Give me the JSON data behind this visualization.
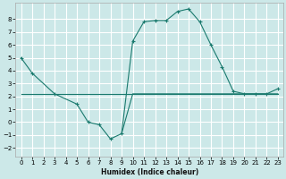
{
  "xlabel": "Humidex (Indice chaleur)",
  "color": "#1a7a6e",
  "bg_color": "#cce8e8",
  "grid_color": "#ffffff",
  "ylim": [
    -2.7,
    9.3
  ],
  "xlim": [
    -0.5,
    23.5
  ],
  "yticks": [
    -2,
    -1,
    0,
    1,
    2,
    3,
    4,
    5,
    6,
    7,
    8
  ],
  "xticks": [
    0,
    1,
    2,
    3,
    4,
    5,
    6,
    7,
    8,
    9,
    10,
    11,
    12,
    13,
    14,
    15,
    16,
    17,
    18,
    19,
    20,
    21,
    22,
    23
  ],
  "line_descend_x": [
    0,
    1,
    3,
    5,
    6,
    7,
    8,
    9
  ],
  "line_descend_y": [
    5.0,
    3.8,
    2.2,
    1.4,
    0.0,
    -0.2,
    -1.3,
    -0.9
  ],
  "line_flat_x": [
    0,
    1,
    2,
    3,
    4,
    5,
    6,
    7,
    8,
    9,
    10,
    11,
    12,
    13,
    14,
    15,
    16,
    17,
    18,
    19,
    20,
    21,
    22,
    23
  ],
  "line_flat_y": [
    2.2,
    2.2,
    2.2,
    2.2,
    2.2,
    2.2,
    2.2,
    2.2,
    2.2,
    2.2,
    2.2,
    2.2,
    2.2,
    2.2,
    2.2,
    2.2,
    2.2,
    2.2,
    2.2,
    2.2,
    2.2,
    2.2,
    2.2,
    2.2
  ],
  "line_upper_x": [
    9,
    10,
    11,
    12,
    13,
    14,
    15,
    16,
    17,
    18,
    19,
    20,
    21,
    22,
    23
  ],
  "line_upper_y": [
    -0.9,
    6.3,
    7.8,
    7.9,
    7.9,
    8.6,
    8.8,
    7.8,
    6.0,
    4.3,
    2.4,
    2.2,
    2.2,
    2.2,
    2.6
  ],
  "line_lower_x": [
    9,
    10,
    11,
    12,
    13,
    14,
    15,
    16,
    17,
    18,
    19,
    20,
    21,
    22,
    23
  ],
  "line_lower_y": [
    -0.9,
    2.2,
    2.2,
    2.2,
    2.2,
    2.2,
    2.2,
    2.2,
    2.2,
    2.2,
    2.2,
    2.2,
    2.2,
    2.2,
    2.2
  ],
  "marker_upper_x": [
    10,
    11,
    12,
    13,
    14,
    15,
    16,
    17,
    18,
    19,
    20,
    21,
    22,
    23
  ],
  "marker_upper_y": [
    6.3,
    7.8,
    7.9,
    7.9,
    8.6,
    8.8,
    7.8,
    6.0,
    4.3,
    2.4,
    2.2,
    2.2,
    2.2,
    2.6
  ],
  "marker_descend_x": [
    0,
    1,
    3,
    5,
    6,
    7,
    8,
    9
  ],
  "marker_descend_y": [
    5.0,
    3.8,
    2.2,
    1.4,
    0.0,
    -0.2,
    -1.3,
    -0.9
  ]
}
